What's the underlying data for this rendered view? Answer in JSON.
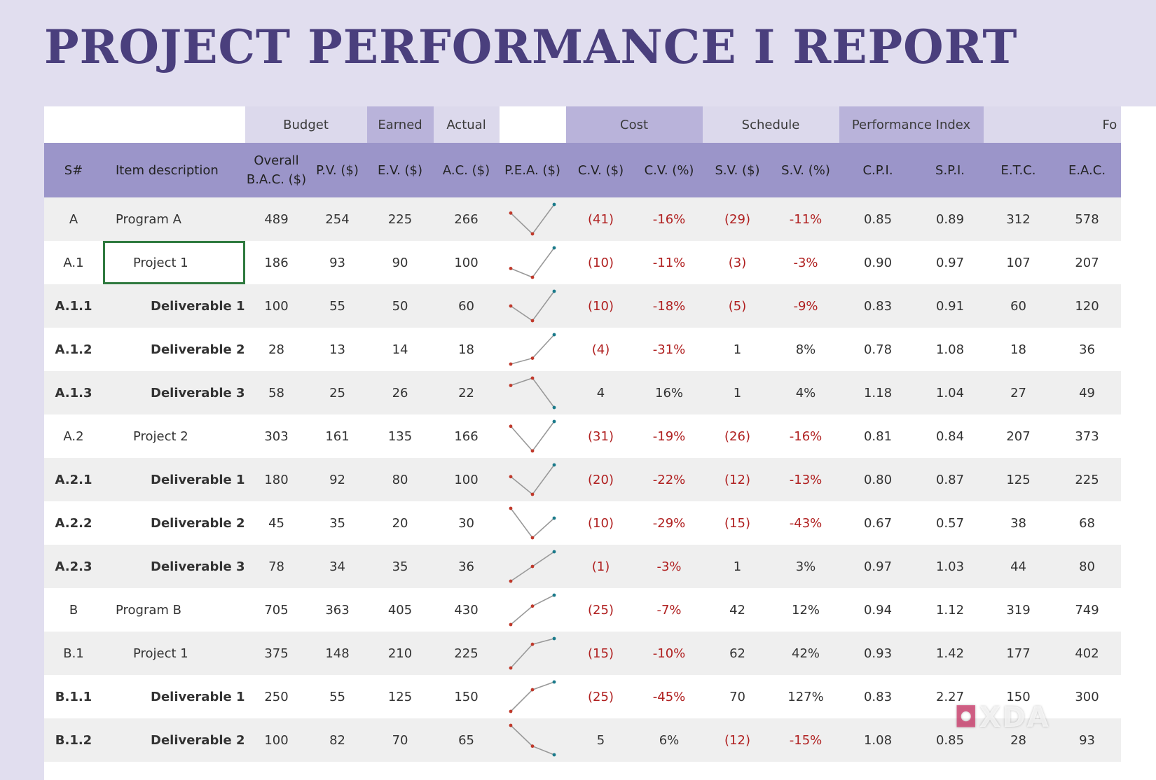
{
  "title": "PROJECT PERFORMANCE  I  REPORT",
  "groups": {
    "budget": "Budget",
    "earned": "Earned",
    "actual": "Actual",
    "cost": "Cost",
    "schedule": "Schedule",
    "performance": "Performance Index",
    "forecast": "Fo"
  },
  "headers": {
    "sn": "S#",
    "desc": "Item description",
    "bac": "Overall B.A.C. ($)",
    "pv": "P.V. ($)",
    "ev": "E.V. ($)",
    "ac": "A.C. ($)",
    "pea": "P.E.A. ($)",
    "cv": "C.V. ($)",
    "cvp": "C.V. (%)",
    "sv": "S.V. ($)",
    "svp": "S.V. (%)",
    "cpi": "C.P.I.",
    "spi": "S.P.I.",
    "etc": "E.T.C.",
    "eac": "E.A.C."
  },
  "rows": [
    {
      "sn": "A",
      "desc": "Program A",
      "level": 0,
      "bold": false,
      "bac": "489",
      "pv": "254",
      "ev": "225",
      "ac": "266",
      "cv": "(41)",
      "cvp": "-16%",
      "sv": "(29)",
      "svp": "-11%",
      "cpi": "0.85",
      "spi": "0.89",
      "etc": "312",
      "eac": "578"
    },
    {
      "sn": "A.1",
      "desc": "Project 1",
      "level": 1,
      "bold": false,
      "bac": "186",
      "pv": "93",
      "ev": "90",
      "ac": "100",
      "cv": "(10)",
      "cvp": "-11%",
      "sv": "(3)",
      "svp": "-3%",
      "cpi": "0.90",
      "spi": "0.97",
      "etc": "107",
      "eac": "207"
    },
    {
      "sn": "A.1.1",
      "desc": "Deliverable 1",
      "level": 2,
      "bold": true,
      "bac": "100",
      "pv": "55",
      "ev": "50",
      "ac": "60",
      "cv": "(10)",
      "cvp": "-18%",
      "sv": "(5)",
      "svp": "-9%",
      "cpi": "0.83",
      "spi": "0.91",
      "etc": "60",
      "eac": "120"
    },
    {
      "sn": "A.1.2",
      "desc": "Deliverable 2",
      "level": 2,
      "bold": true,
      "bac": "28",
      "pv": "13",
      "ev": "14",
      "ac": "18",
      "cv": "(4)",
      "cvp": "-31%",
      "sv": "1",
      "svp": "8%",
      "cpi": "0.78",
      "spi": "1.08",
      "etc": "18",
      "eac": "36"
    },
    {
      "sn": "A.1.3",
      "desc": "Deliverable 3",
      "level": 2,
      "bold": true,
      "bac": "58",
      "pv": "25",
      "ev": "26",
      "ac": "22",
      "cv": "4",
      "cvp": "16%",
      "sv": "1",
      "svp": "4%",
      "cpi": "1.18",
      "spi": "1.04",
      "etc": "27",
      "eac": "49"
    },
    {
      "sn": "A.2",
      "desc": "Project 2",
      "level": 1,
      "bold": false,
      "bac": "303",
      "pv": "161",
      "ev": "135",
      "ac": "166",
      "cv": "(31)",
      "cvp": "-19%",
      "sv": "(26)",
      "svp": "-16%",
      "cpi": "0.81",
      "spi": "0.84",
      "etc": "207",
      "eac": "373"
    },
    {
      "sn": "A.2.1",
      "desc": "Deliverable 1",
      "level": 2,
      "bold": true,
      "bac": "180",
      "pv": "92",
      "ev": "80",
      "ac": "100",
      "cv": "(20)",
      "cvp": "-22%",
      "sv": "(12)",
      "svp": "-13%",
      "cpi": "0.80",
      "spi": "0.87",
      "etc": "125",
      "eac": "225"
    },
    {
      "sn": "A.2.2",
      "desc": "Deliverable 2",
      "level": 2,
      "bold": true,
      "bac": "45",
      "pv": "35",
      "ev": "20",
      "ac": "30",
      "cv": "(10)",
      "cvp": "-29%",
      "sv": "(15)",
      "svp": "-43%",
      "cpi": "0.67",
      "spi": "0.57",
      "etc": "38",
      "eac": "68"
    },
    {
      "sn": "A.2.3",
      "desc": "Deliverable 3",
      "level": 2,
      "bold": true,
      "bac": "78",
      "pv": "34",
      "ev": "35",
      "ac": "36",
      "cv": "(1)",
      "cvp": "-3%",
      "sv": "1",
      "svp": "3%",
      "cpi": "0.97",
      "spi": "1.03",
      "etc": "44",
      "eac": "80"
    },
    {
      "sn": "B",
      "desc": "Program B",
      "level": 0,
      "bold": false,
      "bac": "705",
      "pv": "363",
      "ev": "405",
      "ac": "430",
      "cv": "(25)",
      "cvp": "-7%",
      "sv": "42",
      "svp": "12%",
      "cpi": "0.94",
      "spi": "1.12",
      "etc": "319",
      "eac": "749"
    },
    {
      "sn": "B.1",
      "desc": "Project 1",
      "level": 1,
      "bold": false,
      "bac": "375",
      "pv": "148",
      "ev": "210",
      "ac": "225",
      "cv": "(15)",
      "cvp": "-10%",
      "sv": "62",
      "svp": "42%",
      "cpi": "0.93",
      "spi": "1.42",
      "etc": "177",
      "eac": "402"
    },
    {
      "sn": "B.1.1",
      "desc": "Deliverable 1",
      "level": 2,
      "bold": true,
      "bac": "250",
      "pv": "55",
      "ev": "125",
      "ac": "150",
      "cv": "(25)",
      "cvp": "-45%",
      "sv": "70",
      "svp": "127%",
      "cpi": "0.83",
      "spi": "2.27",
      "etc": "150",
      "eac": "300"
    },
    {
      "sn": "B.1.2",
      "desc": "Deliverable 2",
      "level": 2,
      "bold": true,
      "bac": "100",
      "pv": "82",
      "ev": "70",
      "ac": "65",
      "cv": "5",
      "cvp": "6%",
      "sv": "(12)",
      "svp": "-15%",
      "cpi": "1.08",
      "spi": "0.85",
      "etc": "28",
      "eac": "93"
    }
  ],
  "selected_row": 1,
  "colors": {
    "negative": "#b02020",
    "spark_line": "#999999",
    "spark_pv": "#c0392b",
    "spark_ev": "#c0392b",
    "spark_ac": "#1a7a8a"
  },
  "watermark": "XDA"
}
